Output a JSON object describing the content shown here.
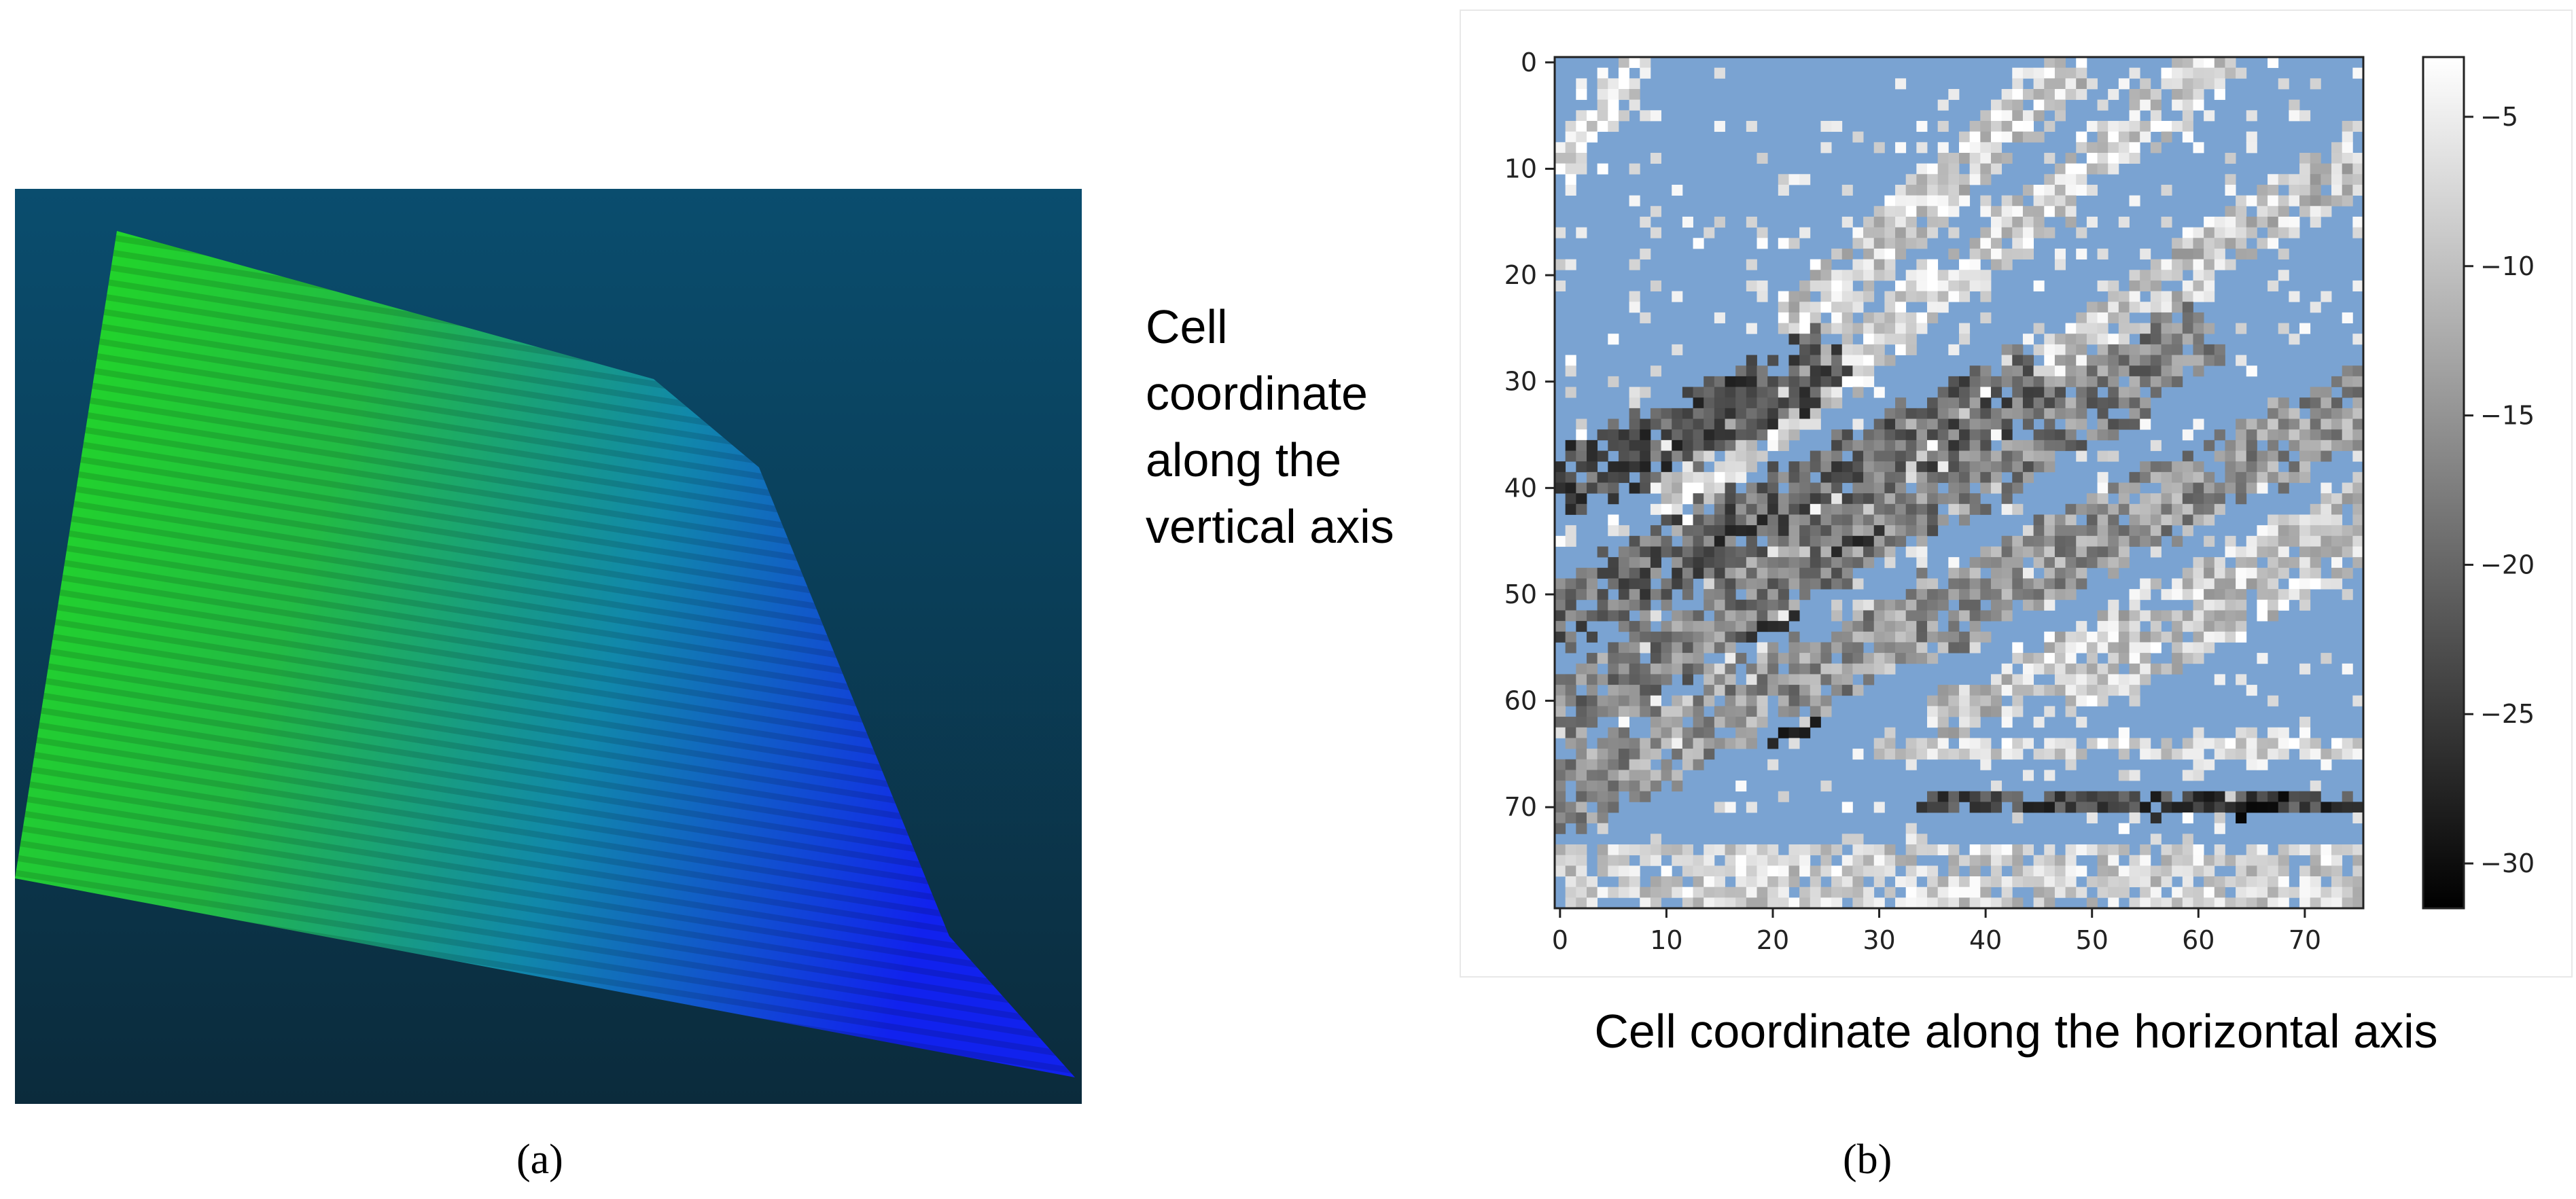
{
  "captions": {
    "a": "(a)",
    "b": "(b)"
  },
  "panel_a": {
    "background": "#0c3a4e",
    "colors": [
      "#22dd22",
      "#1188aa",
      "#1122ee"
    ]
  },
  "chart_data": {
    "type": "heatmap",
    "xlabel": "Cell coordinate along the horizontal axis",
    "ylabel": "Cell coordinate along the vertical axis",
    "xlim": [
      0,
      76
    ],
    "ylim": [
      80,
      0
    ],
    "x_ticks": [
      0,
      10,
      20,
      30,
      40,
      50,
      60,
      70
    ],
    "y_ticks": [
      0,
      10,
      20,
      30,
      40,
      50,
      60,
      70
    ],
    "colorbar": {
      "ticks": [
        -5,
        -10,
        -15,
        -20,
        -25,
        -30
      ],
      "min": -31.5,
      "max": -3,
      "colormap": "gray"
    },
    "nodata_color": "#7aa3d2",
    "grid": false,
    "stripes": [
      {
        "x0": 0,
        "y0": 40,
        "x1": 26,
        "y1": 28,
        "w": 3.2,
        "v": -22
      },
      {
        "x0": 0,
        "y0": 52,
        "x1": 44,
        "y1": 30,
        "w": 3.4,
        "v": -20
      },
      {
        "x0": 0,
        "y0": 61,
        "x1": 60,
        "y1": 26,
        "w": 3.4,
        "v": -17
      },
      {
        "x0": 0,
        "y0": 69,
        "x1": 76,
        "y1": 32,
        "w": 3.6,
        "v": -15
      },
      {
        "x0": 20,
        "y0": 46,
        "x1": 76,
        "y1": 8,
        "w": 2.8,
        "v": -9
      },
      {
        "x0": 10,
        "y0": 42,
        "x1": 62,
        "y1": 0,
        "w": 2.6,
        "v": -7
      },
      {
        "x0": 22,
        "y0": 25,
        "x1": 48,
        "y1": 0,
        "w": 2.8,
        "v": -8
      },
      {
        "x0": 36,
        "y0": 62,
        "x1": 76,
        "y1": 41,
        "w": 2.4,
        "v": -9
      },
      {
        "x0": 48,
        "y0": 60,
        "x1": 76,
        "y1": 45,
        "w": 2.2,
        "v": -8
      },
      {
        "x0": 0,
        "y0": 10,
        "x1": 8,
        "y1": 0,
        "w": 1.6,
        "v": -5
      }
    ],
    "bands": [
      {
        "y0": 64,
        "y1": 66,
        "x0": 28,
        "x1": 76,
        "v": -7
      },
      {
        "y0": 69,
        "y1": 71,
        "x0": 34,
        "x1": 76,
        "v": -24
      },
      {
        "y0": 74,
        "y1": 80,
        "x0": 0,
        "x1": 76,
        "v": -8
      }
    ],
    "dark_spots": [
      {
        "x": 17,
        "y": 44,
        "v": -28
      },
      {
        "x": 20,
        "y": 53,
        "v": -29
      },
      {
        "x": 22,
        "y": 63,
        "v": -30
      },
      {
        "x": 5,
        "y": 39,
        "v": -26
      },
      {
        "x": 28,
        "y": 45,
        "v": -28
      },
      {
        "x": 66,
        "y": 70,
        "v": -31
      },
      {
        "x": 58,
        "y": 70,
        "v": -28
      },
      {
        "x": 16,
        "y": 31,
        "v": -24
      }
    ]
  }
}
